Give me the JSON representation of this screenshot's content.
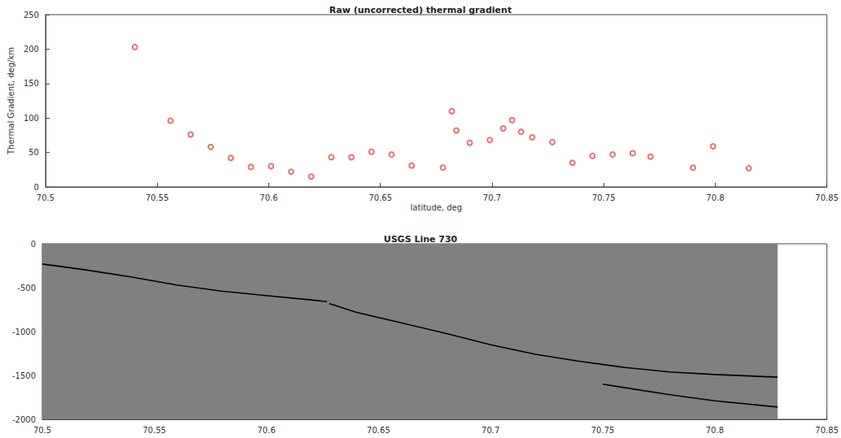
{
  "chart_data": [
    {
      "type": "scatter",
      "title": "Raw (uncorrected) thermal gradient",
      "x_label": "latitude, deg",
      "y_label": "Thermal Gradient, deg/km",
      "x": [
        70.54,
        70.556,
        70.565,
        70.574,
        70.583,
        70.592,
        70.601,
        70.61,
        70.619,
        70.628,
        70.637,
        70.646,
        70.655,
        70.664,
        70.678,
        70.682,
        70.684,
        70.69,
        70.699,
        70.705,
        70.709,
        70.713,
        70.718,
        70.727,
        70.736,
        70.745,
        70.754,
        70.763,
        70.771,
        70.79,
        70.799,
        70.815
      ],
      "values": [
        203,
        96,
        76,
        58,
        42,
        29,
        30,
        22,
        15,
        43,
        43,
        51,
        47,
        31,
        28,
        110,
        82,
        64,
        68,
        85,
        97,
        80,
        72,
        65,
        35,
        45,
        47,
        49,
        44,
        28,
        59,
        27
      ],
      "color": "#d9534f",
      "marker": "circle",
      "xlim": [
        70.5,
        70.85
      ],
      "xticks": [
        70.5,
        70.55,
        70.6,
        70.65,
        70.7,
        70.75,
        70.8,
        70.85
      ],
      "ylim": [
        0,
        250
      ],
      "yticks": [
        0,
        50,
        100,
        150,
        200,
        250
      ],
      "grid": false
    },
    {
      "type": "line",
      "title": "USGS Line 730",
      "section_extent": [
        70.5,
        70.828
      ],
      "section_color": "#808080",
      "series": [
        {
          "color": "#000000",
          "x": [
            70.5,
            70.52,
            70.54,
            70.56,
            70.58,
            70.6,
            70.62,
            70.627
          ],
          "values": [
            -230,
            -300,
            -380,
            -470,
            -540,
            -590,
            -640,
            -660
          ]
        },
        {
          "color": "#000000",
          "x": [
            70.628,
            70.64,
            70.66,
            70.68,
            70.7,
            70.72,
            70.74,
            70.76,
            70.78,
            70.8,
            70.828
          ],
          "values": [
            -680,
            -780,
            -900,
            -1020,
            -1150,
            -1260,
            -1340,
            -1410,
            -1460,
            -1490,
            -1520
          ]
        },
        {
          "color": "#000000",
          "x": [
            70.75,
            70.78,
            70.8,
            70.828
          ],
          "values": [
            -1600,
            -1720,
            -1790,
            -1860
          ]
        }
      ],
      "xlim": [
        70.5,
        70.85
      ],
      "xticks": [
        70.5,
        70.55,
        70.6,
        70.65,
        70.7,
        70.75,
        70.8,
        70.85
      ],
      "ylim": [
        -2000,
        0
      ],
      "yticks": [
        -2000,
        -1500,
        -1000,
        -500,
        0
      ],
      "grid": false
    }
  ]
}
